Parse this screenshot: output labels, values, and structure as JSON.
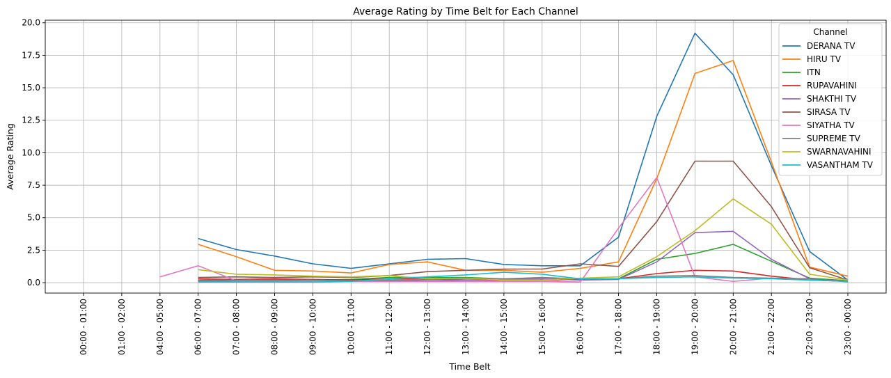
{
  "chart_data": {
    "type": "line",
    "title": "Average Rating by Time Belt for Each Channel",
    "xlabel": "Time Belt",
    "ylabel": "Average Rating",
    "ylim": [
      -0.8,
      20.2
    ],
    "yticks": [
      "0.0",
      "2.5",
      "5.0",
      "7.5",
      "10.0",
      "12.5",
      "15.0",
      "17.5",
      "20.0"
    ],
    "grid": true,
    "legend_title": "Channel",
    "legend_position": "top-right",
    "categories": [
      "00:00 - 01:00",
      "01:00 - 02:00",
      "04:00 - 05:00",
      "06:00 - 07:00",
      "07:00 - 08:00",
      "08:00 - 09:00",
      "09:00 - 10:00",
      "10:00 - 11:00",
      "11:00 - 12:00",
      "12:00 - 13:00",
      "13:00 - 14:00",
      "14:00 - 15:00",
      "15:00 - 16:00",
      "16:00 - 17:00",
      "17:00 - 18:00",
      "18:00 - 19:00",
      "19:00 - 20:00",
      "20:00 - 21:00",
      "21:00 - 22:00",
      "22:00 - 23:00",
      "23:00 - 00:00"
    ],
    "series": [
      {
        "name": "DERANA TV",
        "color": "#1f77b4",
        "values": [
          null,
          null,
          null,
          3.4,
          2.55,
          2.05,
          1.45,
          1.1,
          1.45,
          1.8,
          1.85,
          1.4,
          1.3,
          1.3,
          3.5,
          12.8,
          19.2,
          16.0,
          9.0,
          2.4,
          0.2
        ]
      },
      {
        "name": "HIRU TV",
        "color": "#ff7f0e",
        "values": [
          null,
          null,
          null,
          2.95,
          2.0,
          0.95,
          0.9,
          0.75,
          1.4,
          1.6,
          0.95,
          0.95,
          0.8,
          1.1,
          1.6,
          8.0,
          16.1,
          17.1,
          9.3,
          1.2,
          0.5
        ]
      },
      {
        "name": "ITN",
        "color": "#2ca02c",
        "values": [
          null,
          null,
          null,
          0.15,
          0.2,
          0.25,
          0.2,
          0.25,
          0.4,
          0.4,
          0.4,
          0.3,
          0.3,
          0.25,
          0.3,
          1.8,
          2.25,
          2.95,
          1.65,
          0.35,
          0.15
        ]
      },
      {
        "name": "RUPAVAHINI",
        "color": "#d62728",
        "values": [
          null,
          null,
          null,
          0.3,
          0.25,
          0.3,
          0.25,
          0.2,
          0.3,
          0.3,
          0.2,
          0.2,
          0.2,
          0.25,
          0.3,
          0.7,
          0.95,
          0.9,
          0.5,
          0.2,
          0.1
        ]
      },
      {
        "name": "SHAKTHI TV",
        "color": "#9467bd",
        "values": [
          null,
          null,
          null,
          0.1,
          0.1,
          0.15,
          0.1,
          0.1,
          0.15,
          0.15,
          0.2,
          0.25,
          0.3,
          0.2,
          0.25,
          1.6,
          3.85,
          3.95,
          1.8,
          0.3,
          0.1
        ]
      },
      {
        "name": "SIRASA TV",
        "color": "#8c564b",
        "values": [
          null,
          null,
          null,
          0.4,
          0.45,
          0.4,
          0.45,
          0.4,
          0.55,
          0.85,
          0.95,
          1.05,
          1.05,
          1.45,
          1.25,
          4.7,
          9.35,
          9.35,
          5.85,
          1.15,
          0.2
        ]
      },
      {
        "name": "SIYATHA TV",
        "color": "#e377c2",
        "values": [
          null,
          null,
          0.45,
          1.3,
          0.15,
          0.1,
          0.1,
          0.1,
          0.1,
          0.1,
          0.1,
          0.1,
          0.1,
          0.05,
          4.2,
          8.1,
          0.45,
          0.1,
          0.35,
          0.3,
          0.05
        ]
      },
      {
        "name": "SUPREME TV",
        "color": "#7f7f7f",
        "values": [
          null,
          null,
          null,
          0.2,
          0.2,
          0.2,
          0.2,
          0.15,
          0.2,
          0.25,
          0.3,
          0.3,
          0.4,
          0.3,
          0.3,
          0.5,
          0.55,
          0.4,
          0.35,
          0.3,
          0.1
        ]
      },
      {
        "name": "SWARNAVAHINI",
        "color": "#bcbd22",
        "values": [
          null,
          null,
          null,
          1.0,
          0.65,
          0.6,
          0.5,
          0.45,
          0.55,
          0.3,
          0.35,
          0.2,
          0.2,
          0.35,
          0.45,
          2.0,
          4.0,
          6.45,
          4.5,
          0.65,
          0.2
        ]
      },
      {
        "name": "VASANTHAM TV",
        "color": "#17becf",
        "values": [
          null,
          null,
          null,
          0.05,
          0.05,
          0.05,
          0.05,
          0.1,
          0.3,
          0.45,
          0.6,
          0.8,
          0.65,
          0.3,
          0.3,
          0.4,
          0.45,
          0.35,
          0.3,
          0.2,
          0.1
        ]
      }
    ]
  }
}
